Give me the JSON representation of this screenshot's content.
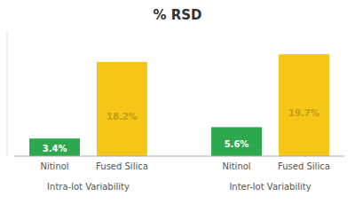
{
  "chart_data": {
    "type": "bar",
    "title": "% RSD",
    "categories": [
      "Nitinol",
      "Fused Silica",
      "Nitinol",
      "Fused Silica"
    ],
    "values": [
      3.4,
      18.2,
      5.6,
      19.7
    ],
    "value_labels": [
      "3.4%",
      "18.2%",
      "5.6%",
      "19.7%"
    ],
    "colors": [
      "#2ea84e",
      "#f5c518",
      "#2ea84e",
      "#f5c518"
    ],
    "annotations": [
      "Intra-lot Variability",
      "Inter-lot Variability"
    ],
    "ylim": [
      0,
      24
    ],
    "grid": false,
    "data_labels": true,
    "tick_labels": "x"
  }
}
